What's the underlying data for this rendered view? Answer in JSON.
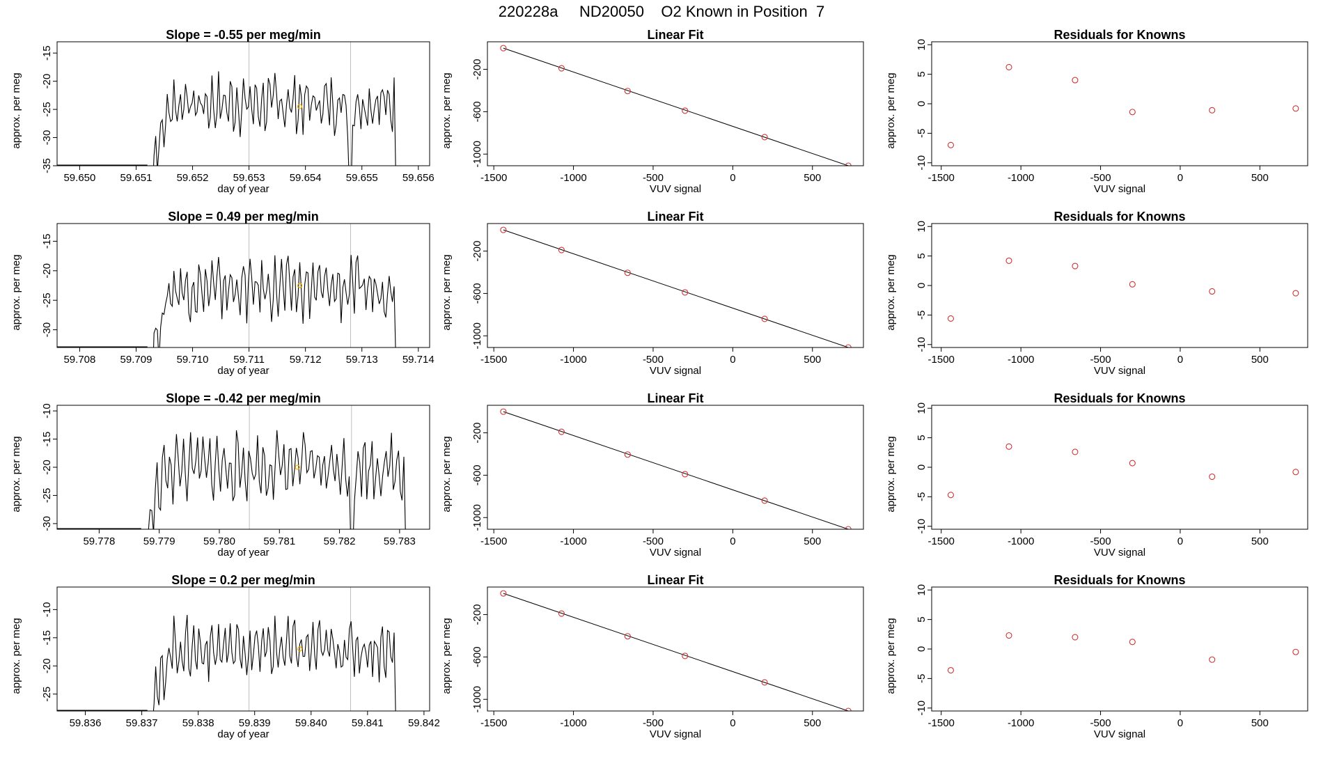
{
  "suptitle": "220228a     ND20050    O2 Known in Position  7",
  "colors": {
    "trace": "#000000",
    "vline": "#bebebe",
    "known_point": "#cd3333",
    "mean_marker": "#f5b000",
    "fit_line": "#000000"
  },
  "chart_data": [
    {
      "type": "line",
      "row": 1,
      "title": "Slope =  -0.55  per meg/min",
      "xlabel": "day of year",
      "ylabel": "approx. per meg",
      "xlim": [
        59.6496,
        59.6562
      ],
      "ylim": [
        -35,
        -13
      ],
      "xticks": [
        "59.650",
        "59.651",
        "59.652",
        "59.653",
        "59.654",
        "59.655",
        "59.656"
      ],
      "yticks": [
        "-35",
        "-30",
        "-25",
        "-20",
        "-15"
      ],
      "vlines": [
        59.653,
        59.6548
      ],
      "series": [
        {
          "start": 59.6512,
          "end": 59.6556,
          "base": -24,
          "amp": 3.5,
          "step_drop_at": 59.6548
        }
      ],
      "mean_marker": {
        "x": 59.6539,
        "y": -24.5
      },
      "grid": false
    },
    {
      "type": "scatter",
      "row": 1,
      "title": "Linear Fit",
      "xlabel": "VUV signal",
      "ylabel": "approx. per meg",
      "xlim": [
        -1540,
        820
      ],
      "ylim": [
        -1110,
        60
      ],
      "xticks": [
        "-1500",
        "-1000",
        "-500",
        "0",
        "500"
      ],
      "yticks": [
        "-1000",
        "-600",
        "-200"
      ],
      "x": [
        -1440,
        -1075,
        -660,
        -300,
        200,
        725
      ],
      "y": [
        0,
        -190,
        -405,
        -590,
        -840,
        -1110
      ],
      "fit_line": {
        "x": [
          -1440,
          725
        ],
        "y": [
          0,
          -1110
        ]
      },
      "grid": false
    },
    {
      "type": "scatter",
      "row": 1,
      "title": "Residuals for Knowns",
      "xlabel": "VUV signal",
      "ylabel": "approx. per meg",
      "xlim": [
        -1560,
        800
      ],
      "ylim": [
        -10.5,
        10.5
      ],
      "xticks": [
        "-1500",
        "-1000",
        "-500",
        "0",
        "500"
      ],
      "yticks": [
        "-10",
        "-5",
        "0",
        "5",
        "10"
      ],
      "x": [
        -1440,
        -1075,
        -660,
        -300,
        200,
        725
      ],
      "y": [
        -7.0,
        6.2,
        4.0,
        -1.4,
        -1.1,
        -0.8
      ],
      "grid": false
    },
    {
      "type": "line",
      "row": 2,
      "title": "Slope =  0.49  per meg/min",
      "xlabel": "day of year",
      "ylabel": "approx. per meg",
      "xlim": [
        59.7076,
        59.7142
      ],
      "ylim": [
        -33,
        -12
      ],
      "xticks": [
        "59.708",
        "59.709",
        "59.710",
        "59.711",
        "59.712",
        "59.713",
        "59.714"
      ],
      "yticks": [
        "-30",
        "-25",
        "-20",
        "-15"
      ],
      "vlines": [
        59.711,
        59.7128
      ],
      "series": [
        {
          "start": 59.7092,
          "end": 59.7136,
          "base": -23,
          "amp": 3.5,
          "step_drop_at": null
        }
      ],
      "mean_marker": {
        "x": 59.7119,
        "y": -22.5
      },
      "grid": false
    },
    {
      "type": "scatter",
      "row": 2,
      "title": "Linear Fit",
      "xlabel": "VUV signal",
      "ylabel": "approx. per meg",
      "xlim": [
        -1540,
        820
      ],
      "ylim": [
        -1110,
        60
      ],
      "xticks": [
        "-1500",
        "-1000",
        "-500",
        "0",
        "500"
      ],
      "yticks": [
        "-1000",
        "-600",
        "-200"
      ],
      "x": [
        -1440,
        -1075,
        -660,
        -300,
        200,
        725
      ],
      "y": [
        0,
        -190,
        -405,
        -590,
        -840,
        -1110
      ],
      "fit_line": {
        "x": [
          -1440,
          725
        ],
        "y": [
          0,
          -1110
        ]
      },
      "grid": false
    },
    {
      "type": "scatter",
      "row": 2,
      "title": "Residuals for Knowns",
      "xlabel": "VUV signal",
      "ylabel": "approx. per meg",
      "xlim": [
        -1560,
        800
      ],
      "ylim": [
        -10.5,
        10.5
      ],
      "xticks": [
        "-1500",
        "-1000",
        "-500",
        "0",
        "500"
      ],
      "yticks": [
        "-10",
        "-5",
        "0",
        "5",
        "10"
      ],
      "x": [
        -1440,
        -1075,
        -660,
        -300,
        200,
        725
      ],
      "y": [
        -5.6,
        4.2,
        3.3,
        0.2,
        -1.0,
        -1.3
      ],
      "grid": false
    },
    {
      "type": "line",
      "row": 3,
      "title": "Slope =  -0.42  per meg/min",
      "xlabel": "day of year",
      "ylabel": "approx. per meg",
      "xlim": [
        59.7773,
        59.7835
      ],
      "ylim": [
        -31,
        -9
      ],
      "xticks": [
        "59.778",
        "59.779",
        "59.780",
        "59.781",
        "59.782",
        "59.783"
      ],
      "yticks": [
        "-30",
        "-25",
        "-20",
        "-15",
        "-10"
      ],
      "vlines": [
        59.7805,
        59.7822
      ],
      "series": [
        {
          "start": 59.7787,
          "end": 59.7831,
          "base": -20,
          "amp": 4.0,
          "step_drop_at": 59.7822
        }
      ],
      "mean_marker": {
        "x": 59.7813,
        "y": -20
      },
      "grid": false
    },
    {
      "type": "scatter",
      "row": 3,
      "title": "Linear Fit",
      "xlabel": "VUV signal",
      "ylabel": "approx. per meg",
      "xlim": [
        -1540,
        820
      ],
      "ylim": [
        -1110,
        60
      ],
      "xticks": [
        "-1500",
        "-1000",
        "-500",
        "0",
        "500"
      ],
      "yticks": [
        "-1000",
        "-600",
        "-200"
      ],
      "x": [
        -1440,
        -1075,
        -660,
        -300,
        200,
        725
      ],
      "y": [
        0,
        -190,
        -405,
        -590,
        -840,
        -1110
      ],
      "fit_line": {
        "x": [
          -1440,
          725
        ],
        "y": [
          0,
          -1110
        ]
      },
      "grid": false
    },
    {
      "type": "scatter",
      "row": 3,
      "title": "Residuals for Knowns",
      "xlabel": "VUV signal",
      "ylabel": "approx. per meg",
      "xlim": [
        -1560,
        800
      ],
      "ylim": [
        -10.5,
        10.5
      ],
      "xticks": [
        "-1500",
        "-1000",
        "-500",
        "0",
        "500"
      ],
      "yticks": [
        "-10",
        "-5",
        "0",
        "5",
        "10"
      ],
      "x": [
        -1440,
        -1075,
        -660,
        -300,
        200,
        725
      ],
      "y": [
        -4.7,
        3.5,
        2.6,
        0.7,
        -1.6,
        -0.8
      ],
      "grid": false
    },
    {
      "type": "line",
      "row": 4,
      "title": "Slope =  0.2  per meg/min",
      "xlabel": "day of year",
      "ylabel": "approx. per meg",
      "xlim": [
        59.8355,
        59.8421
      ],
      "ylim": [
        -28,
        -6
      ],
      "xticks": [
        "59.836",
        "59.837",
        "59.838",
        "59.839",
        "59.840",
        "59.841",
        "59.842"
      ],
      "yticks": [
        "-25",
        "-20",
        "-15",
        "-10"
      ],
      "vlines": [
        59.8389,
        59.8407
      ],
      "series": [
        {
          "start": 59.8371,
          "end": 59.8415,
          "base": -17,
          "amp": 3.5,
          "step_drop_at": null
        }
      ],
      "mean_marker": {
        "x": 59.8398,
        "y": -17
      },
      "grid": false
    },
    {
      "type": "scatter",
      "row": 4,
      "title": "Linear Fit",
      "xlabel": "VUV signal",
      "ylabel": "approx. per meg",
      "xlim": [
        -1540,
        820
      ],
      "ylim": [
        -1110,
        60
      ],
      "xticks": [
        "-1500",
        "-1000",
        "-500",
        "0",
        "500"
      ],
      "yticks": [
        "-1000",
        "-600",
        "-200"
      ],
      "x": [
        -1440,
        -1075,
        -660,
        -300,
        200,
        725
      ],
      "y": [
        0,
        -190,
        -405,
        -590,
        -840,
        -1110
      ],
      "fit_line": {
        "x": [
          -1440,
          725
        ],
        "y": [
          0,
          -1110
        ]
      },
      "grid": false
    },
    {
      "type": "scatter",
      "row": 4,
      "title": "Residuals for Knowns",
      "xlabel": "VUV signal",
      "ylabel": "approx. per meg",
      "xlim": [
        -1560,
        800
      ],
      "ylim": [
        -10.5,
        10.5
      ],
      "xticks": [
        "-1500",
        "-1000",
        "-500",
        "0",
        "500"
      ],
      "yticks": [
        "-10",
        "-5",
        "0",
        "5",
        "10"
      ],
      "x": [
        -1440,
        -1075,
        -660,
        -300,
        200,
        725
      ],
      "y": [
        -3.6,
        2.3,
        2.0,
        1.2,
        -1.8,
        -0.5
      ],
      "grid": false
    }
  ]
}
